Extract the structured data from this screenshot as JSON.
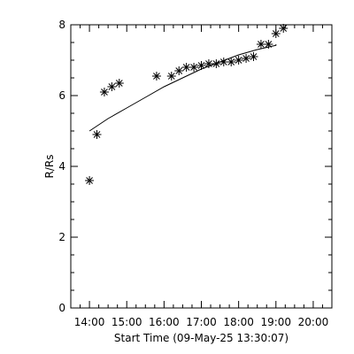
{
  "chart_data": {
    "type": "scatter",
    "xlabel": "Start Time (09-May-25 13:30:07)",
    "ylabel": "R/Rs",
    "xlim": [
      "13:30",
      "20:30"
    ],
    "ylim": [
      0,
      8
    ],
    "x_ticks": [
      "14:00",
      "15:00",
      "16:00",
      "17:00",
      "18:00",
      "19:00",
      "20:00"
    ],
    "y_ticks": [
      "0",
      "2",
      "4",
      "6",
      "8"
    ],
    "grid": false,
    "series": [
      {
        "marker": "asterisk",
        "points": [
          {
            "t": "14:00",
            "r": 3.6
          },
          {
            "t": "14:12",
            "r": 4.9
          },
          {
            "t": "14:24",
            "r": 6.1
          },
          {
            "t": "14:36",
            "r": 6.25
          },
          {
            "t": "14:48",
            "r": 6.35
          },
          {
            "t": "15:48",
            "r": 6.55
          },
          {
            "t": "16:12",
            "r": 6.55
          },
          {
            "t": "16:24",
            "r": 6.7
          },
          {
            "t": "16:36",
            "r": 6.8
          },
          {
            "t": "16:48",
            "r": 6.8
          },
          {
            "t": "17:00",
            "r": 6.85
          },
          {
            "t": "17:12",
            "r": 6.9
          },
          {
            "t": "17:24",
            "r": 6.9
          },
          {
            "t": "17:36",
            "r": 6.95
          },
          {
            "t": "17:48",
            "r": 6.95
          },
          {
            "t": "18:00",
            "r": 7.0
          },
          {
            "t": "18:12",
            "r": 7.05
          },
          {
            "t": "18:24",
            "r": 7.1
          },
          {
            "t": "18:36",
            "r": 7.45
          },
          {
            "t": "18:48",
            "r": 7.45
          },
          {
            "t": "19:00",
            "r": 7.75
          },
          {
            "t": "19:12",
            "r": 7.9
          }
        ]
      },
      {
        "line": "fit",
        "points": [
          {
            "t": "14:00",
            "r": 5.0
          },
          {
            "t": "14:30",
            "r": 5.35
          },
          {
            "t": "15:00",
            "r": 5.65
          },
          {
            "t": "15:30",
            "r": 5.95
          },
          {
            "t": "16:00",
            "r": 6.25
          },
          {
            "t": "16:30",
            "r": 6.5
          },
          {
            "t": "17:00",
            "r": 6.75
          },
          {
            "t": "17:30",
            "r": 6.95
          },
          {
            "t": "18:00",
            "r": 7.15
          },
          {
            "t": "18:30",
            "r": 7.3
          },
          {
            "t": "19:00",
            "r": 7.42
          },
          {
            "t": "19:00",
            "r": 7.45
          }
        ]
      }
    ]
  },
  "colors": {
    "background": "#ffffff",
    "foreground": "#000000"
  }
}
